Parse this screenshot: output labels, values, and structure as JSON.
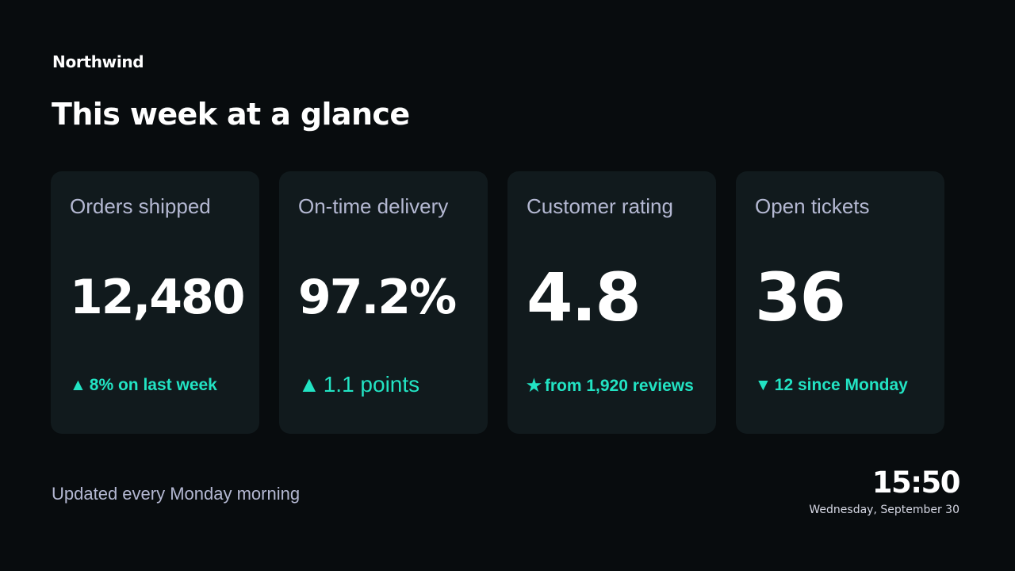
{
  "brand": "Northwind",
  "title": "This week at a glance",
  "cards": [
    {
      "label": "Orders shipped",
      "value": "12,480",
      "change_glyph": "▲",
      "change_text": "8% on last week"
    },
    {
      "label": "On-time delivery",
      "value": "97.2%",
      "change_glyph": "▲",
      "change_text": "1.1 points"
    },
    {
      "label": "Customer rating",
      "value": "4.8",
      "change_glyph": "★",
      "change_text": "from 1,920 reviews"
    },
    {
      "label": "Open tickets",
      "value": "36",
      "change_glyph": "▼",
      "change_text": "12 since Monday"
    }
  ],
  "footer": {
    "note": "Updated every Monday morning",
    "time": "15:50",
    "date": "Wednesday, September 30"
  },
  "colors": {
    "background": "#080c0e",
    "card": "#111a1d",
    "label": "#b4b8d2",
    "accent": "#22e3c3"
  }
}
